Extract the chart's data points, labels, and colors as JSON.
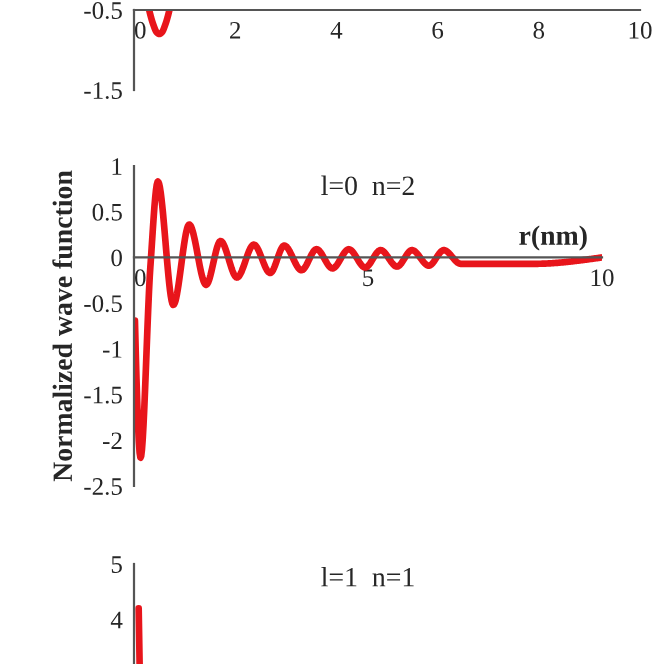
{
  "chart_data": [
    {
      "type": "line",
      "xlim": [
        0,
        10
      ],
      "ylim": [
        -1.5,
        -0.5
      ],
      "xticks": [
        0,
        2,
        4,
        6,
        8,
        10
      ],
      "yticks": [
        -0.5,
        -1.5
      ],
      "series": [
        {
          "color": "#e8151b",
          "x": [
            0.3,
            0.38,
            0.45,
            0.5,
            0.55,
            0.62,
            0.7
          ],
          "values": [
            -0.5,
            -0.68,
            -0.78,
            -0.8,
            -0.78,
            -0.68,
            -0.5
          ]
        }
      ]
    },
    {
      "type": "line",
      "title": "l=0  n=2",
      "xlabel": "r(nm)",
      "ylabel": "Normalized wave function",
      "xlim": [
        0,
        10
      ],
      "ylim": [
        -2.5,
        1
      ],
      "xticks": [
        0,
        5,
        10
      ],
      "yticks": [
        1,
        0.5,
        0,
        -0.5,
        -1,
        -1.5,
        -2,
        -2.5
      ],
      "series": [
        {
          "color": "#e8151b",
          "x": [
            0.02,
            0.14,
            0.35,
            0.51,
            0.84,
            1.18,
            1.54,
            1.85,
            2.2,
            2.56,
            2.91,
            3.21,
            3.58,
            3.9,
            4.24,
            4.59,
            4.94,
            5.27,
            5.62,
            5.94,
            6.3,
            6.62,
            6.98,
            8.55,
            10
          ],
          "values": [
            -0.69,
            -2.19,
            -0.1,
            0.83,
            -0.52,
            0.36,
            -0.3,
            0.18,
            -0.22,
            0.14,
            -0.17,
            0.13,
            -0.14,
            0.09,
            -0.12,
            0.09,
            -0.11,
            0.08,
            -0.1,
            0.08,
            -0.09,
            0.08,
            -0.07,
            -0.07,
            0
          ]
        }
      ]
    },
    {
      "type": "line",
      "title": "l=1  n=1",
      "xlim": [
        0,
        10
      ],
      "ylim": [
        3.2,
        5
      ],
      "yticks": [
        5,
        4
      ],
      "tick_labels": "y",
      "series": [
        {
          "color": "#e8151b",
          "x": [
            0.1,
            0.12
          ],
          "values": [
            4.2,
            3.2
          ]
        }
      ]
    }
  ]
}
